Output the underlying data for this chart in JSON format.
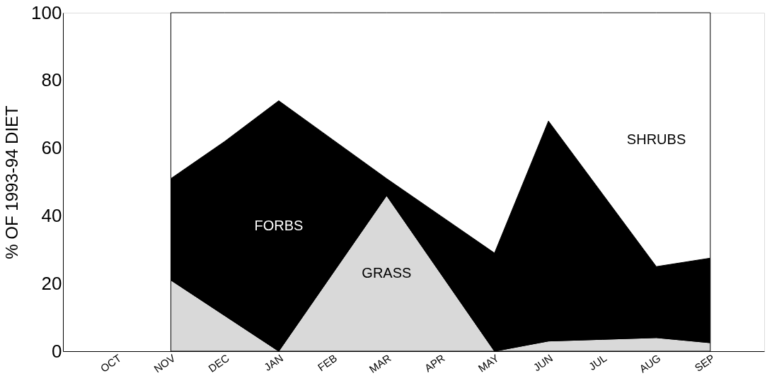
{
  "chart_data": {
    "type": "area",
    "stacked": true,
    "ylabel": "% OF 1993-94 DIET",
    "categories": [
      "OCT",
      "NOV",
      "DEC",
      "JAN",
      "FEB",
      "MAR",
      "APR",
      "MAY",
      "JUN",
      "JUL",
      "AUG",
      "SEP"
    ],
    "series": [
      {
        "name": "GRASS",
        "color": "#d9d9d9",
        "values": [
          null,
          21,
          10.5,
          0,
          23,
          46,
          23,
          0,
          3,
          3.5,
          4,
          2.5
        ]
      },
      {
        "name": "FORBS",
        "color": "#000000",
        "values": [
          null,
          30,
          51.5,
          74,
          39.5,
          5,
          17,
          29,
          65,
          43,
          21,
          25
        ]
      },
      {
        "name": "SHRUBS",
        "color": "#ffffff",
        "values": [
          null,
          49,
          38,
          26,
          37.5,
          49,
          60,
          71,
          32,
          53.5,
          75,
          72.5
        ]
      }
    ],
    "ylim": [
      0,
      100
    ],
    "yticks": [
      0,
      20,
      40,
      60,
      80,
      100
    ],
    "grid": false,
    "legend": false
  }
}
